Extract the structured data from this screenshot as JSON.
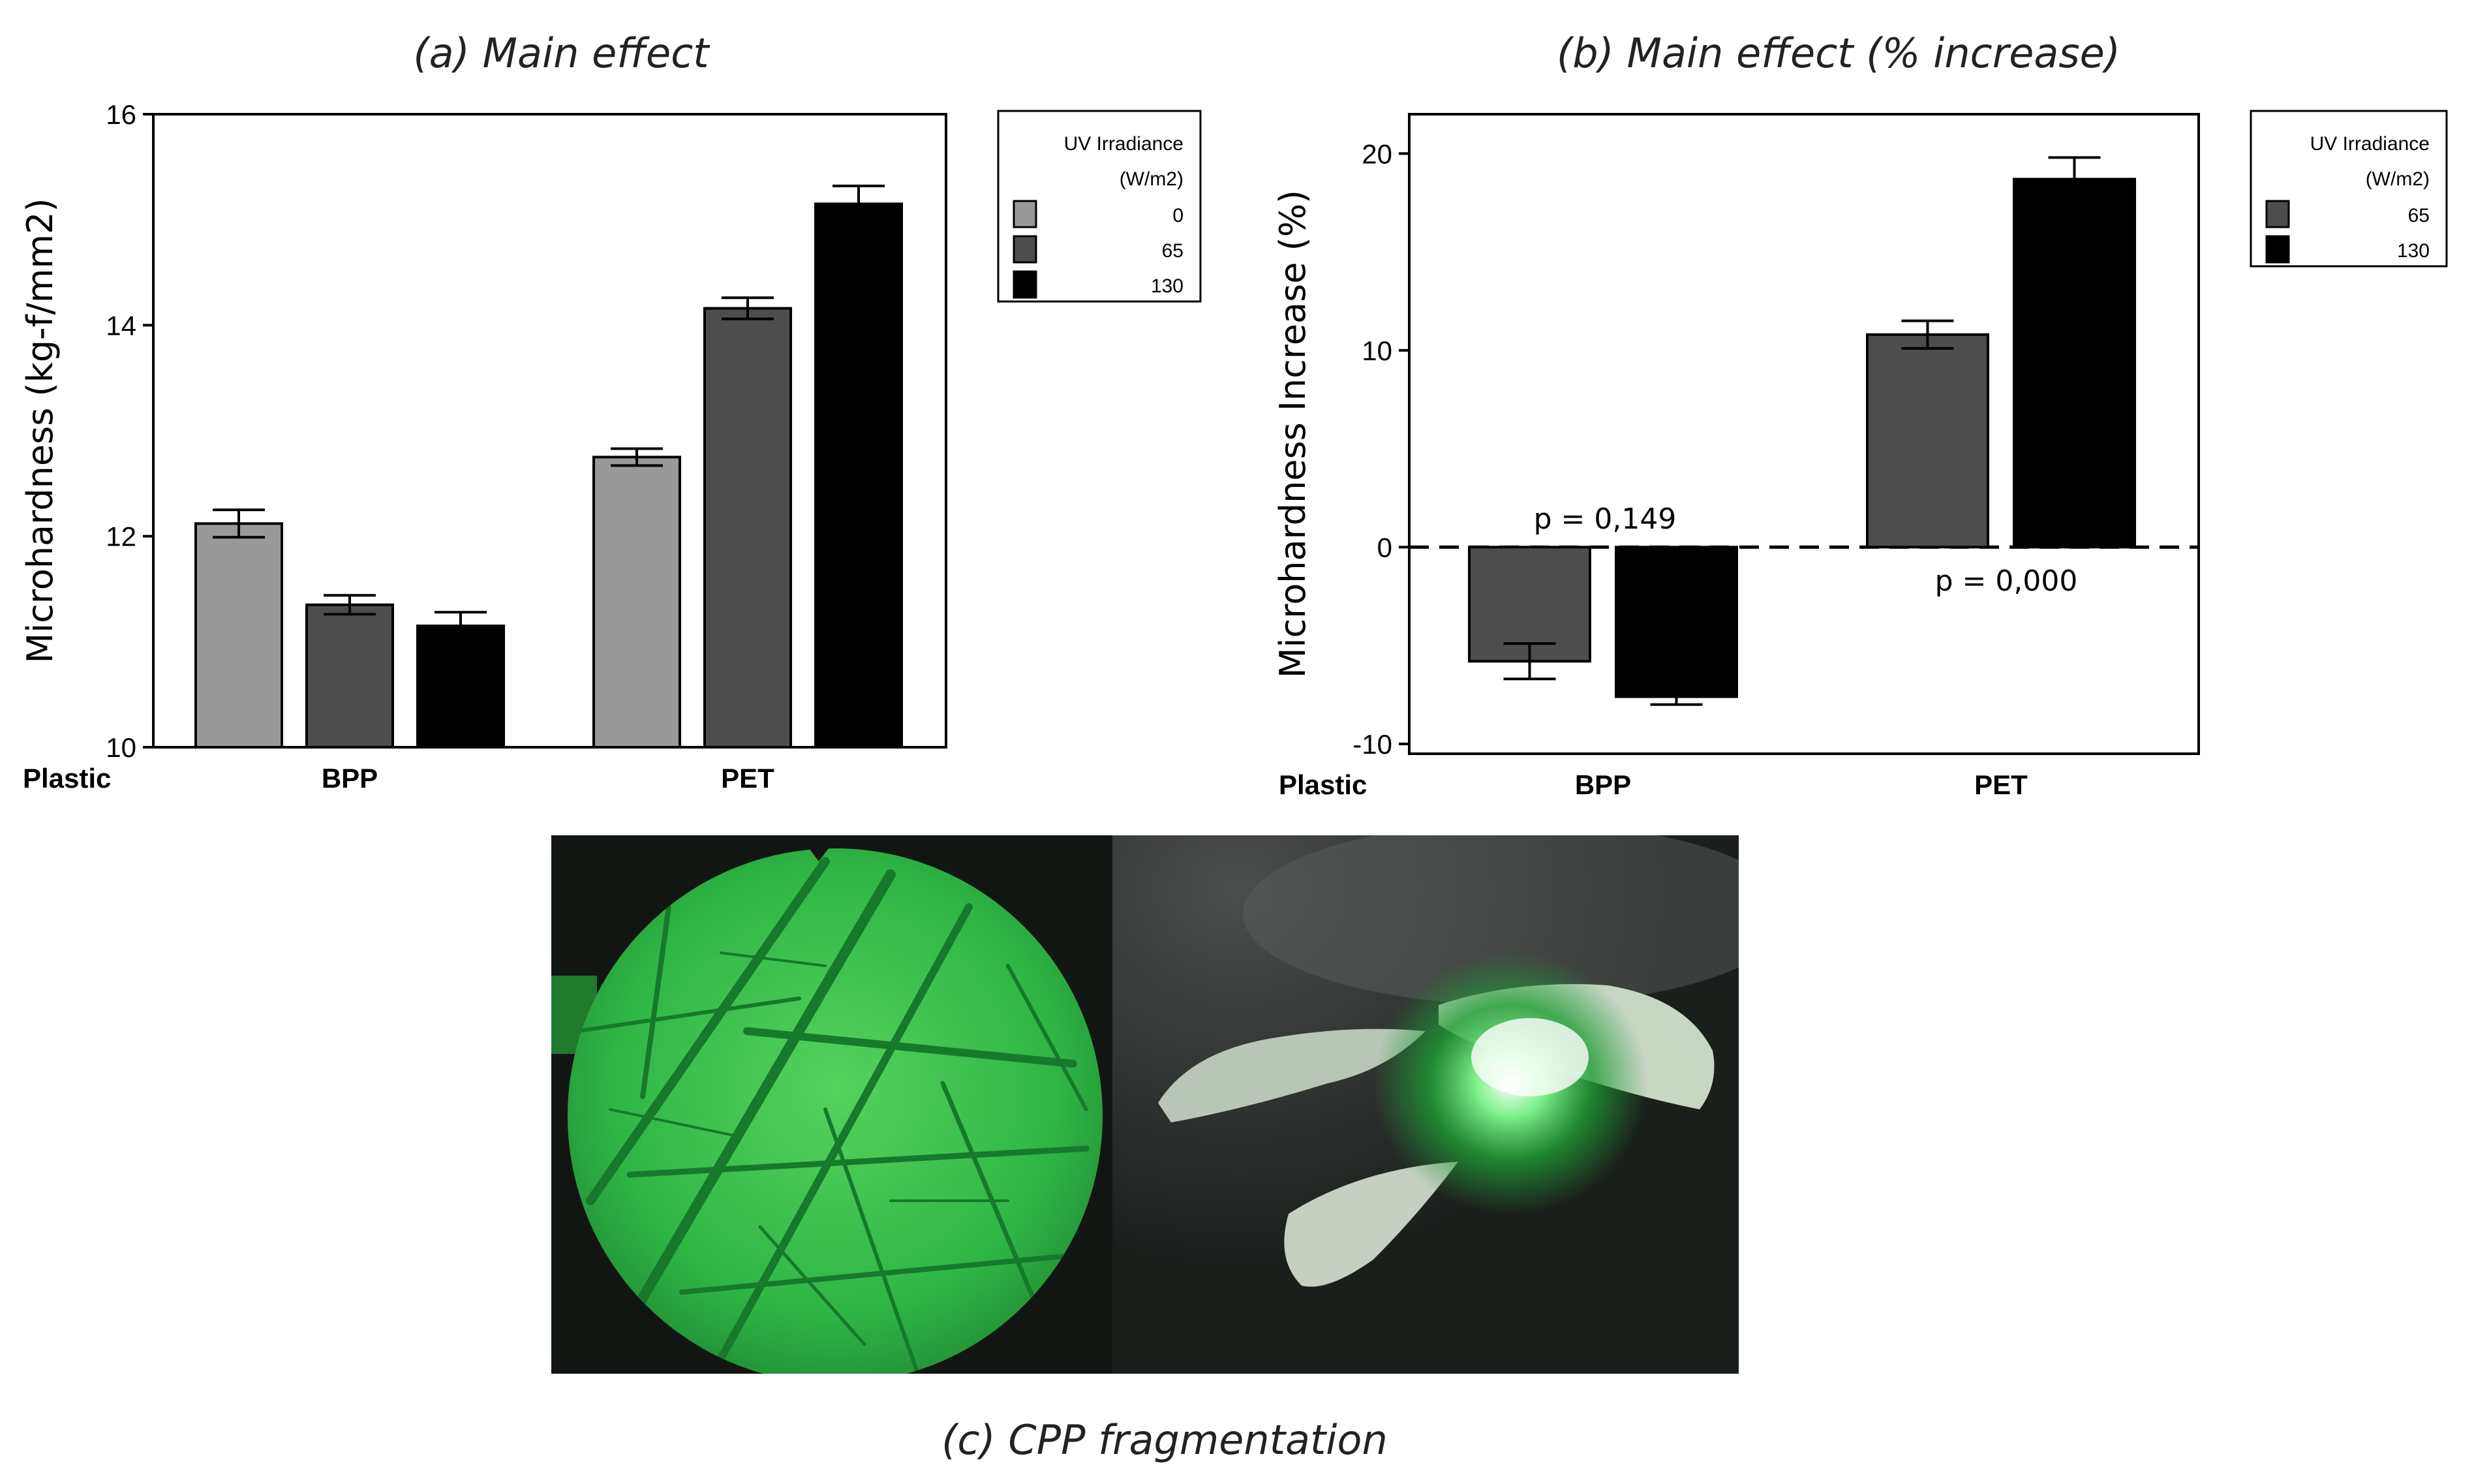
{
  "chart_data": [
    {
      "panel_title": "(a) Main effect",
      "type": "bar",
      "ylabel": "Microhardness (kg-f/mm2)",
      "x_prefix_label": "Plastic",
      "categories": [
        "BPP",
        "PET"
      ],
      "ylim": [
        10,
        16
      ],
      "yticks": [
        10,
        12,
        14,
        16
      ],
      "legend": {
        "title_line1": "UV Irradiance",
        "title_line2": "(W/m2)",
        "position": "right"
      },
      "series": [
        {
          "name": "0",
          "color": "#999999",
          "values": [
            12.12,
            12.75
          ],
          "err": [
            0.13,
            0.08
          ]
        },
        {
          "name": "65",
          "color": "#4d4d4d",
          "values": [
            11.35,
            14.16
          ],
          "err": [
            0.09,
            0.1
          ]
        },
        {
          "name": "130",
          "color": "#000000",
          "values": [
            11.15,
            15.15
          ],
          "err": [
            0.13,
            0.17
          ]
        }
      ]
    },
    {
      "panel_title": "(b) Main effect (% increase)",
      "type": "bar",
      "ylabel": "Microhardness Increase (%)",
      "x_prefix_label": "Plastic",
      "categories": [
        "BPP",
        "PET"
      ],
      "ylim": [
        -10.5,
        22
      ],
      "yticks": [
        -10,
        0,
        10,
        20
      ],
      "reference_line": 0,
      "legend": {
        "title_line1": "UV Irradiance",
        "title_line2": "(W/m2)",
        "position": "right"
      },
      "annotations": [
        "p = 0,149",
        "p = 0,000"
      ],
      "series": [
        {
          "name": "65",
          "color": "#4d4d4d",
          "values": [
            -5.8,
            10.8
          ],
          "err": [
            0.9,
            0.7
          ]
        },
        {
          "name": "130",
          "color": "#000000",
          "values": [
            -7.6,
            18.7
          ],
          "err": [
            0.4,
            1.1
          ]
        }
      ]
    }
  ],
  "photo_caption": "(c) CPP fragmentation",
  "photo_colors": {
    "glow": "#33c24a",
    "dark": "#121613"
  }
}
